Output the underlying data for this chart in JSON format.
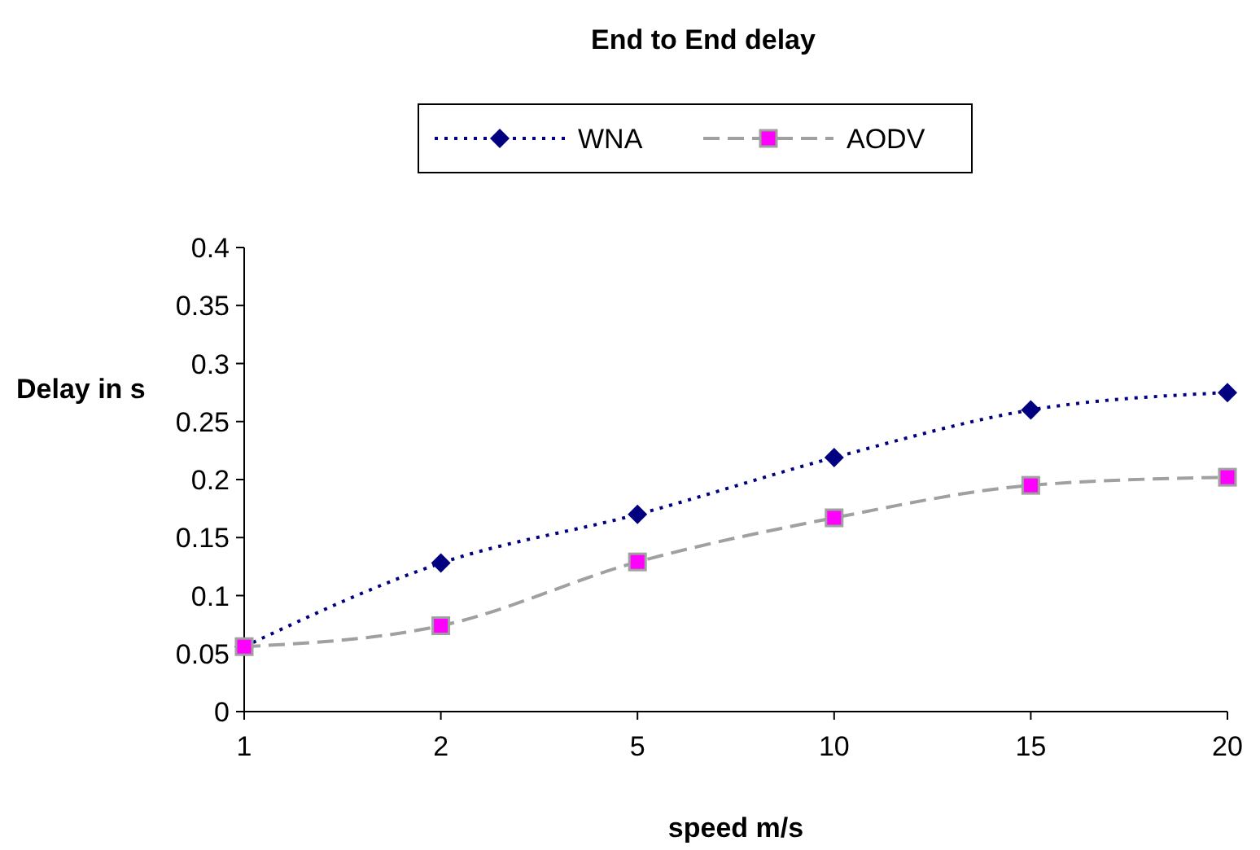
{
  "chart_data": {
    "type": "line",
    "title": "End to End delay",
    "xlabel": "speed m/s",
    "ylabel": "Delay in s",
    "categories": [
      "1",
      "2",
      "5",
      "10",
      "15",
      "20"
    ],
    "series": [
      {
        "name": "WNA",
        "color": "#000080",
        "values": [
          0.056,
          0.128,
          0.17,
          0.219,
          0.26,
          0.275
        ],
        "marker": "diamond",
        "line_style": "dotted"
      },
      {
        "name": "AODV",
        "color": "#a0a0a0",
        "values": [
          0.056,
          0.074,
          0.129,
          0.167,
          0.195,
          0.202
        ],
        "marker": "square",
        "line_style": "dashed"
      }
    ],
    "ylim": [
      0,
      0.4
    ],
    "yticks": [
      0,
      0.05,
      0.1,
      0.15,
      0.2,
      0.25,
      0.3,
      0.35,
      0.4
    ],
    "grid": false,
    "legend": "top"
  }
}
